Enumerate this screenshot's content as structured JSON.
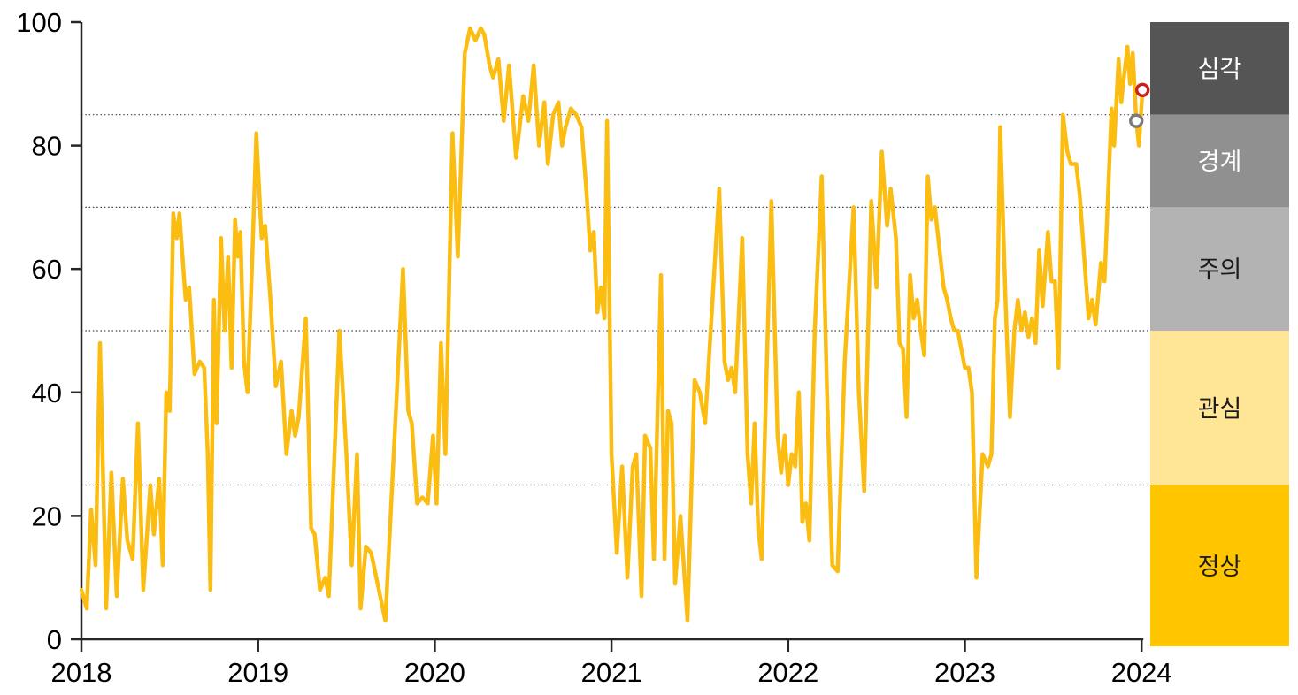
{
  "chart_data": {
    "type": "line",
    "title": "",
    "x_axis": {
      "tick_years": [
        2018,
        2019,
        2020,
        2021,
        2022,
        2023,
        2024
      ],
      "tick_labels": [
        "2018",
        "2019",
        "2020",
        "2021",
        "2022",
        "2023",
        "2024"
      ],
      "range": [
        2018,
        2024.04
      ]
    },
    "y_axis": {
      "ticks": [
        0,
        20,
        40,
        60,
        80,
        100
      ],
      "tick_labels": [
        "0",
        "20",
        "40",
        "60",
        "80",
        "100"
      ],
      "range": [
        0,
        100
      ]
    },
    "gridlines": [
      25,
      50,
      70,
      85
    ],
    "zones": [
      {
        "key": "severe",
        "label": "심각",
        "from": 85,
        "to": 100,
        "color": "#555555",
        "text_color": "#ffffff"
      },
      {
        "key": "alert",
        "label": "경계",
        "from": 70,
        "to": 85,
        "color": "#909090",
        "text_color": "#ffffff"
      },
      {
        "key": "caution",
        "label": "주의",
        "from": 50,
        "to": 70,
        "color": "#b3b3b3",
        "text_color": "#1a1a1a"
      },
      {
        "key": "interest",
        "label": "관심",
        "from": 25,
        "to": 50,
        "color": "#ffe596",
        "text_color": "#1a1a1a"
      },
      {
        "key": "normal",
        "label": "정상",
        "from": 0,
        "to": 25,
        "color": "#ffc600",
        "text_color": "#1a1a1a"
      }
    ],
    "series": [
      {
        "name": "stress-index",
        "color": "#fbbd11",
        "points": [
          [
            2018.0,
            8
          ],
          [
            2018.03,
            5
          ],
          [
            2018.055,
            21
          ],
          [
            2018.08,
            12
          ],
          [
            2018.105,
            48
          ],
          [
            2018.14,
            5
          ],
          [
            2018.17,
            27
          ],
          [
            2018.2,
            7
          ],
          [
            2018.235,
            26
          ],
          [
            2018.26,
            16
          ],
          [
            2018.29,
            13
          ],
          [
            2018.32,
            35
          ],
          [
            2018.35,
            8
          ],
          [
            2018.39,
            25
          ],
          [
            2018.41,
            17
          ],
          [
            2018.44,
            26
          ],
          [
            2018.46,
            12
          ],
          [
            2018.48,
            40
          ],
          [
            2018.5,
            37
          ],
          [
            2018.52,
            69
          ],
          [
            2018.54,
            65
          ],
          [
            2018.555,
            69
          ],
          [
            2018.59,
            55
          ],
          [
            2018.61,
            57
          ],
          [
            2018.64,
            43
          ],
          [
            2018.67,
            45
          ],
          [
            2018.695,
            44
          ],
          [
            2018.715,
            30
          ],
          [
            2018.73,
            8
          ],
          [
            2018.75,
            55
          ],
          [
            2018.765,
            35
          ],
          [
            2018.79,
            65
          ],
          [
            2018.81,
            50
          ],
          [
            2018.83,
            62
          ],
          [
            2018.85,
            44
          ],
          [
            2018.87,
            68
          ],
          [
            2018.885,
            62
          ],
          [
            2018.9,
            66
          ],
          [
            2018.92,
            45
          ],
          [
            2018.94,
            40
          ],
          [
            2018.965,
            60
          ],
          [
            2018.99,
            82
          ],
          [
            2019.02,
            65
          ],
          [
            2019.04,
            67
          ],
          [
            2019.07,
            55
          ],
          [
            2019.1,
            41
          ],
          [
            2019.13,
            45
          ],
          [
            2019.16,
            30
          ],
          [
            2019.19,
            37
          ],
          [
            2019.21,
            33
          ],
          [
            2019.23,
            36
          ],
          [
            2019.27,
            52
          ],
          [
            2019.3,
            18
          ],
          [
            2019.32,
            17
          ],
          [
            2019.35,
            8
          ],
          [
            2019.38,
            10
          ],
          [
            2019.4,
            7
          ],
          [
            2019.46,
            50
          ],
          [
            2019.5,
            30
          ],
          [
            2019.53,
            12
          ],
          [
            2019.56,
            30
          ],
          [
            2019.58,
            5
          ],
          [
            2019.61,
            15
          ],
          [
            2019.64,
            14
          ],
          [
            2019.72,
            3
          ],
          [
            2019.82,
            60
          ],
          [
            2019.85,
            37
          ],
          [
            2019.87,
            35
          ],
          [
            2019.9,
            22
          ],
          [
            2019.93,
            23
          ],
          [
            2019.96,
            22
          ],
          [
            2019.99,
            33
          ],
          [
            2020.01,
            22
          ],
          [
            2020.035,
            48
          ],
          [
            2020.06,
            30
          ],
          [
            2020.1,
            82
          ],
          [
            2020.13,
            62
          ],
          [
            2020.17,
            95
          ],
          [
            2020.2,
            99
          ],
          [
            2020.23,
            97
          ],
          [
            2020.26,
            99
          ],
          [
            2020.28,
            98
          ],
          [
            2020.31,
            93
          ],
          [
            2020.33,
            91
          ],
          [
            2020.36,
            94
          ],
          [
            2020.39,
            84
          ],
          [
            2020.42,
            93
          ],
          [
            2020.46,
            78
          ],
          [
            2020.5,
            88
          ],
          [
            2020.53,
            84
          ],
          [
            2020.56,
            93
          ],
          [
            2020.59,
            80
          ],
          [
            2020.62,
            87
          ],
          [
            2020.64,
            77
          ],
          [
            2020.67,
            85
          ],
          [
            2020.7,
            87
          ],
          [
            2020.72,
            80
          ],
          [
            2020.74,
            83
          ],
          [
            2020.77,
            86
          ],
          [
            2020.8,
            85
          ],
          [
            2020.83,
            83
          ],
          [
            2020.86,
            72
          ],
          [
            2020.88,
            63
          ],
          [
            2020.9,
            66
          ],
          [
            2020.92,
            53
          ],
          [
            2020.94,
            57
          ],
          [
            2020.96,
            52
          ],
          [
            2020.975,
            84
          ],
          [
            2021.0,
            30
          ],
          [
            2021.03,
            14
          ],
          [
            2021.06,
            28
          ],
          [
            2021.09,
            10
          ],
          [
            2021.12,
            28
          ],
          [
            2021.14,
            30
          ],
          [
            2021.17,
            7
          ],
          [
            2021.19,
            33
          ],
          [
            2021.22,
            31
          ],
          [
            2021.24,
            13
          ],
          [
            2021.28,
            59
          ],
          [
            2021.3,
            13
          ],
          [
            2021.32,
            37
          ],
          [
            2021.34,
            35
          ],
          [
            2021.36,
            9
          ],
          [
            2021.39,
            20
          ],
          [
            2021.43,
            3
          ],
          [
            2021.47,
            42
          ],
          [
            2021.5,
            40
          ],
          [
            2021.53,
            35
          ],
          [
            2021.61,
            73
          ],
          [
            2021.64,
            45
          ],
          [
            2021.66,
            42
          ],
          [
            2021.68,
            44
          ],
          [
            2021.7,
            40
          ],
          [
            2021.74,
            65
          ],
          [
            2021.77,
            30
          ],
          [
            2021.79,
            22
          ],
          [
            2021.81,
            35
          ],
          [
            2021.83,
            18
          ],
          [
            2021.85,
            13
          ],
          [
            2021.87,
            35
          ],
          [
            2021.905,
            71
          ],
          [
            2021.94,
            33
          ],
          [
            2021.96,
            27
          ],
          [
            2021.98,
            33
          ],
          [
            2022.0,
            25
          ],
          [
            2022.02,
            30
          ],
          [
            2022.04,
            28
          ],
          [
            2022.06,
            40
          ],
          [
            2022.08,
            19
          ],
          [
            2022.1,
            22
          ],
          [
            2022.12,
            16
          ],
          [
            2022.15,
            50
          ],
          [
            2022.19,
            75
          ],
          [
            2022.22,
            40
          ],
          [
            2022.25,
            12
          ],
          [
            2022.28,
            11
          ],
          [
            2022.32,
            45
          ],
          [
            2022.37,
            70
          ],
          [
            2022.4,
            40
          ],
          [
            2022.43,
            24
          ],
          [
            2022.47,
            71
          ],
          [
            2022.5,
            57
          ],
          [
            2022.53,
            79
          ],
          [
            2022.56,
            67
          ],
          [
            2022.58,
            73
          ],
          [
            2022.61,
            65
          ],
          [
            2022.63,
            48
          ],
          [
            2022.65,
            47
          ],
          [
            2022.67,
            36
          ],
          [
            2022.69,
            59
          ],
          [
            2022.71,
            52
          ],
          [
            2022.73,
            55
          ],
          [
            2022.75,
            50
          ],
          [
            2022.77,
            46
          ],
          [
            2022.79,
            75
          ],
          [
            2022.81,
            68
          ],
          [
            2022.83,
            70
          ],
          [
            2022.88,
            57
          ],
          [
            2022.9,
            55
          ],
          [
            2022.92,
            52
          ],
          [
            2022.94,
            50
          ],
          [
            2022.96,
            50
          ],
          [
            2022.98,
            47
          ],
          [
            2023.0,
            44
          ],
          [
            2023.02,
            44
          ],
          [
            2023.04,
            40
          ],
          [
            2023.065,
            10
          ],
          [
            2023.1,
            30
          ],
          [
            2023.13,
            28
          ],
          [
            2023.15,
            30
          ],
          [
            2023.17,
            52
          ],
          [
            2023.185,
            55
          ],
          [
            2023.2,
            83
          ],
          [
            2023.23,
            55
          ],
          [
            2023.255,
            36
          ],
          [
            2023.28,
            50
          ],
          [
            2023.3,
            55
          ],
          [
            2023.32,
            50
          ],
          [
            2023.34,
            53
          ],
          [
            2023.36,
            49
          ],
          [
            2023.38,
            52
          ],
          [
            2023.4,
            48
          ],
          [
            2023.42,
            63
          ],
          [
            2023.44,
            54
          ],
          [
            2023.47,
            66
          ],
          [
            2023.49,
            58
          ],
          [
            2023.51,
            58
          ],
          [
            2023.53,
            44
          ],
          [
            2023.555,
            85
          ],
          [
            2023.58,
            79
          ],
          [
            2023.6,
            77
          ],
          [
            2023.63,
            77
          ],
          [
            2023.65,
            72
          ],
          [
            2023.68,
            60
          ],
          [
            2023.7,
            52
          ],
          [
            2023.72,
            55
          ],
          [
            2023.74,
            51
          ],
          [
            2023.77,
            61
          ],
          [
            2023.79,
            58
          ],
          [
            2023.83,
            86
          ],
          [
            2023.845,
            80
          ],
          [
            2023.87,
            94
          ],
          [
            2023.885,
            87
          ],
          [
            2023.9,
            91
          ],
          [
            2023.92,
            96
          ],
          [
            2023.935,
            90
          ],
          [
            2023.95,
            95
          ],
          [
            2023.97,
            84
          ],
          [
            2023.985,
            80
          ],
          [
            2024.005,
            89
          ]
        ]
      }
    ],
    "markers": [
      {
        "name": "latest-point-marker",
        "x": 2024.005,
        "y": 89,
        "stroke": "#c9211e",
        "fill": "#ffffff"
      },
      {
        "name": "previous-point-marker",
        "x": 2023.97,
        "y": 84,
        "stroke": "#7a7a7a",
        "fill": "#ffffff"
      }
    ],
    "style": {
      "axis_color": "#262626",
      "gridline_color": "#404040",
      "label_color": "#000000",
      "background": "#ffffff"
    }
  }
}
